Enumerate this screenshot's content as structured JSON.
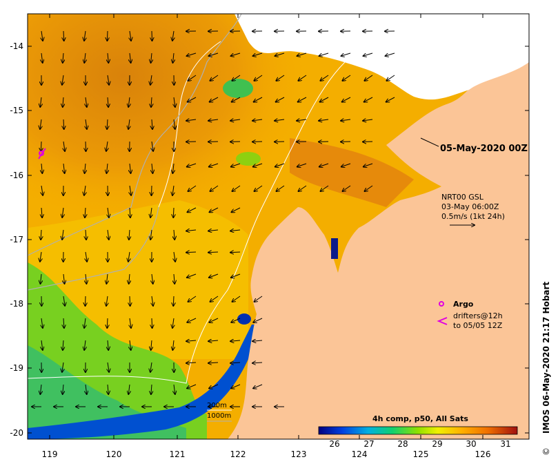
{
  "map": {
    "date_title": "05-May-2020 00Z",
    "current_info": {
      "line1": "NRT00 GSL",
      "line2": "03-May 06:00Z",
      "line3": "0.5m/s (1kt 24h)"
    },
    "legend": {
      "argo_label": "Argo",
      "drifters_line1": "drifters@12h",
      "drifters_line2": "to 05/05 12Z",
      "isobath_200": "200m",
      "isobath_1000": "1000m"
    },
    "colorbar": {
      "title": "4h comp, p50, All Sats",
      "ticks": [
        "26",
        "27",
        "28",
        "29",
        "30",
        "31"
      ],
      "stops": [
        "#000080",
        "#0044e0",
        "#00b0e0",
        "#10d070",
        "#7fe000",
        "#f0f000",
        "#ffb000",
        "#ff8000",
        "#e05000",
        "#a01010"
      ]
    },
    "y_ticks": [
      "-14",
      "-15",
      "-16",
      "-17",
      "-18",
      "-19",
      "-20"
    ],
    "x_ticks": [
      "119",
      "120",
      "121",
      "122",
      "123",
      "124",
      "125",
      "126"
    ],
    "credit": "IMOS 06-May-2020 21:17 Hobart",
    "copyright": "©",
    "colors": {
      "land": "#fbc597",
      "cloud": "#ffffff",
      "warm": "#f2a900",
      "cool": "#5fce30"
    }
  }
}
